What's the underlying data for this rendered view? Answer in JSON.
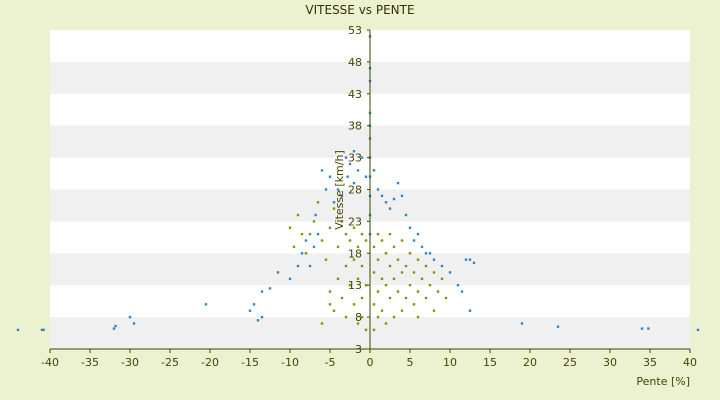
{
  "chart_data": {
    "type": "scatter",
    "title": "VITESSE vs PENTE",
    "xlabel": "Pente [%]",
    "ylabel": "Vitesse [km/h]",
    "xlim": [
      -40,
      40
    ],
    "ylim": [
      3,
      53
    ],
    "x_ticks": [
      "-40",
      "-35",
      "-30",
      "-25",
      "-20",
      "-15",
      "-10",
      "-5",
      "0",
      "5",
      "10",
      "15",
      "20",
      "25",
      "30",
      "35",
      "40"
    ],
    "y_ticks": [
      "3",
      "8",
      "13",
      "18",
      "23",
      "28",
      "33",
      "38",
      "43",
      "48",
      "53"
    ],
    "grid": "horizontal bands",
    "colors": {
      "background": "#ecf2cf",
      "band_light": "#ffffff",
      "band_dark": "#f0f0f0",
      "axis": "#3a4a00",
      "series_blue": "#2e86c8",
      "series_green": "#7a9a00"
    },
    "series": [
      {
        "name": "",
        "color": "#2e86c8",
        "points": [
          [
            -44,
            6
          ],
          [
            -41,
            6
          ],
          [
            -40.8,
            6
          ],
          [
            -32,
            6.2
          ],
          [
            -31.8,
            6.6
          ],
          [
            -30,
            8
          ],
          [
            -29.5,
            7
          ],
          [
            -20.5,
            10
          ],
          [
            -15,
            9
          ],
          [
            -14.5,
            10
          ],
          [
            -14,
            7.5
          ],
          [
            -13.5,
            8
          ],
          [
            -13.5,
            12
          ],
          [
            -12.5,
            12.5
          ],
          [
            -11.5,
            15
          ],
          [
            -10,
            14
          ],
          [
            -9,
            16
          ],
          [
            -8.5,
            18
          ],
          [
            -8,
            20
          ],
          [
            -7.5,
            16
          ],
          [
            -7,
            19
          ],
          [
            -6.8,
            24
          ],
          [
            -6.5,
            21
          ],
          [
            -6,
            31
          ],
          [
            -5.5,
            28
          ],
          [
            -5,
            30
          ],
          [
            -4.5,
            26
          ],
          [
            -4,
            28
          ],
          [
            -3.5,
            27
          ],
          [
            -3,
            33
          ],
          [
            -2.8,
            30
          ],
          [
            -2.5,
            32
          ],
          [
            -2,
            34
          ],
          [
            -2,
            29
          ],
          [
            -1.5,
            31
          ],
          [
            -1,
            33
          ],
          [
            -0.5,
            30
          ],
          [
            0,
            52
          ],
          [
            0,
            47
          ],
          [
            0,
            45
          ],
          [
            0,
            40
          ],
          [
            0,
            38
          ],
          [
            0,
            36
          ],
          [
            0,
            33
          ],
          [
            0,
            30
          ],
          [
            0,
            27
          ],
          [
            0,
            24
          ],
          [
            0,
            21
          ],
          [
            0.5,
            31
          ],
          [
            1,
            28
          ],
          [
            1.5,
            27
          ],
          [
            2,
            26
          ],
          [
            2.5,
            25
          ],
          [
            3,
            26.5
          ],
          [
            3.5,
            29
          ],
          [
            4,
            27
          ],
          [
            4.5,
            24
          ],
          [
            5,
            22
          ],
          [
            5.5,
            20
          ],
          [
            6,
            21
          ],
          [
            6.5,
            19
          ],
          [
            7,
            18
          ],
          [
            7.5,
            18
          ],
          [
            8,
            17
          ],
          [
            9,
            16
          ],
          [
            10,
            15
          ],
          [
            11,
            13
          ],
          [
            12,
            17
          ],
          [
            12.5,
            17
          ],
          [
            13,
            16.5
          ],
          [
            11.5,
            12
          ],
          [
            12.5,
            9
          ],
          [
            19,
            7
          ],
          [
            23.5,
            6.5
          ],
          [
            34,
            6.2
          ],
          [
            34.8,
            6.2
          ],
          [
            41,
            6
          ]
        ]
      },
      {
        "name": "",
        "color": "#7a9a00",
        "points": [
          [
            -10,
            22
          ],
          [
            -9.5,
            19
          ],
          [
            -9,
            24
          ],
          [
            -8.5,
            21
          ],
          [
            -8,
            18
          ],
          [
            -7.5,
            21
          ],
          [
            -7,
            23
          ],
          [
            -6.5,
            26
          ],
          [
            -6,
            20
          ],
          [
            -5.5,
            17
          ],
          [
            -5,
            22
          ],
          [
            -5,
            12
          ],
          [
            -4.5,
            25
          ],
          [
            -4.5,
            9
          ],
          [
            -4,
            19
          ],
          [
            -4,
            14
          ],
          [
            -3.5,
            23
          ],
          [
            -3.5,
            11
          ],
          [
            -3,
            21
          ],
          [
            -3,
            16
          ],
          [
            -3,
            8
          ],
          [
            -2.5,
            20
          ],
          [
            -2.5,
            13
          ],
          [
            -2,
            22
          ],
          [
            -2,
            17
          ],
          [
            -2,
            10
          ],
          [
            -1.5,
            19
          ],
          [
            -1.5,
            14
          ],
          [
            -1.5,
            7
          ],
          [
            -1,
            21
          ],
          [
            -1,
            16
          ],
          [
            -1,
            11
          ],
          [
            -1,
            8
          ],
          [
            -0.5,
            20
          ],
          [
            -0.5,
            13
          ],
          [
            -0.5,
            6
          ],
          [
            0.5,
            19
          ],
          [
            0.5,
            15
          ],
          [
            0.5,
            10
          ],
          [
            0.5,
            6
          ],
          [
            1,
            21
          ],
          [
            1,
            17
          ],
          [
            1,
            12
          ],
          [
            1,
            8
          ],
          [
            1.5,
            20
          ],
          [
            1.5,
            14
          ],
          [
            1.5,
            9
          ],
          [
            2,
            18
          ],
          [
            2,
            13
          ],
          [
            2,
            7
          ],
          [
            2.5,
            21
          ],
          [
            2.5,
            16
          ],
          [
            2.5,
            11
          ],
          [
            3,
            19
          ],
          [
            3,
            14
          ],
          [
            3,
            8
          ],
          [
            3.5,
            17
          ],
          [
            3.5,
            12
          ],
          [
            4,
            20
          ],
          [
            4,
            15
          ],
          [
            4,
            9
          ],
          [
            4.5,
            16
          ],
          [
            4.5,
            11
          ],
          [
            5,
            18
          ],
          [
            5,
            13
          ],
          [
            5.5,
            15
          ],
          [
            5.5,
            10
          ],
          [
            6,
            17
          ],
          [
            6,
            12
          ],
          [
            6.5,
            14
          ],
          [
            7,
            16
          ],
          [
            7,
            11
          ],
          [
            7.5,
            13
          ],
          [
            8,
            15
          ],
          [
            8.5,
            12
          ],
          [
            9,
            14
          ],
          [
            9.5,
            11
          ],
          [
            -6,
            7
          ],
          [
            -5,
            10
          ],
          [
            6,
            8
          ],
          [
            8,
            9
          ]
        ]
      }
    ]
  }
}
